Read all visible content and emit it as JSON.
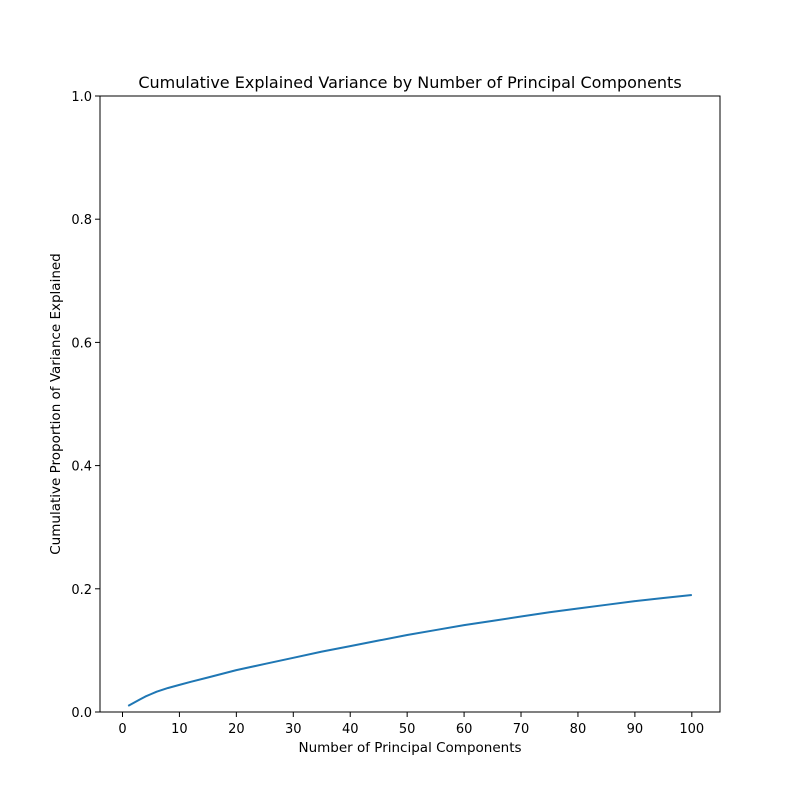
{
  "chart_data": {
    "type": "line",
    "title": "Cumulative Explained Variance by Number of Principal Components",
    "xlabel": "Number of Principal Components",
    "ylabel": "Cumulative Proportion of Variance Explained",
    "xlim": [
      -3.95,
      104.95
    ],
    "ylim": [
      0.0,
      1.0
    ],
    "xticks": [
      0,
      10,
      20,
      30,
      40,
      50,
      60,
      70,
      80,
      90,
      100
    ],
    "yticks": [
      0.0,
      0.2,
      0.4,
      0.6,
      0.8,
      1.0
    ],
    "grid": false,
    "legend": false,
    "series": [
      {
        "color": "#1f77b4",
        "x": [
          1,
          2,
          3,
          4,
          5,
          6,
          8,
          10,
          12,
          15,
          20,
          25,
          30,
          35,
          40,
          45,
          50,
          55,
          60,
          65,
          70,
          75,
          80,
          85,
          90,
          95,
          100
        ],
        "y": [
          0.01,
          0.015,
          0.02,
          0.025,
          0.029,
          0.033,
          0.039,
          0.044,
          0.049,
          0.056,
          0.068,
          0.078,
          0.088,
          0.098,
          0.107,
          0.116,
          0.125,
          0.133,
          0.141,
          0.148,
          0.155,
          0.162,
          0.168,
          0.174,
          0.18,
          0.185,
          0.19
        ]
      }
    ]
  }
}
